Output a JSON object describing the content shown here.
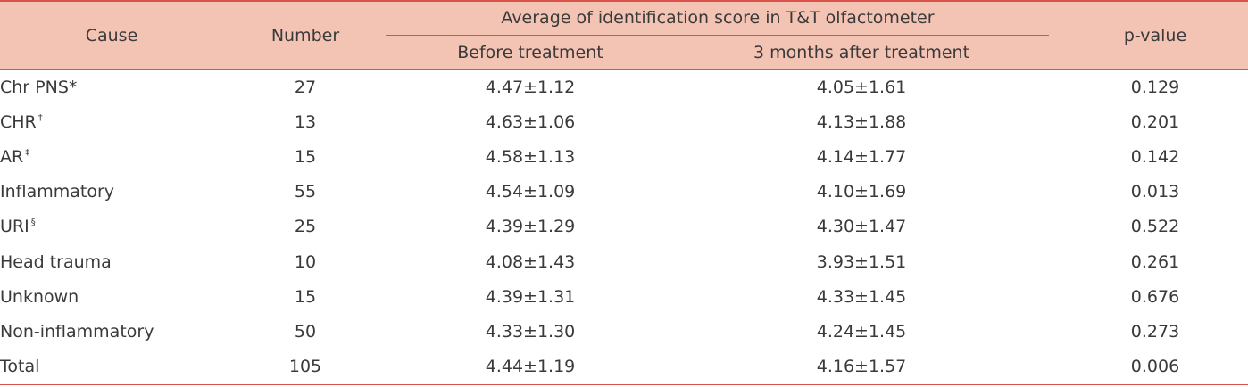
{
  "header": {
    "cause": "Cause",
    "number": "Number",
    "group": "Average of identification score in T&T olfactometer",
    "before": "Before treatment",
    "after": "3 months after treatment",
    "pvalue": "p-value"
  },
  "table": {
    "rows": [
      {
        "cause": "Chr PNS*",
        "note": null,
        "number": "27",
        "before": "4.47±1.12",
        "after": "4.05±1.61",
        "p": "0.129"
      },
      {
        "cause": "CHR",
        "note": "†",
        "number": "13",
        "before": "4.63±1.06",
        "after": "4.13±1.88",
        "p": "0.201"
      },
      {
        "cause": "AR",
        "note": "‡",
        "number": "15",
        "before": "4.58±1.13",
        "after": "4.14±1.77",
        "p": "0.142"
      },
      {
        "cause": "Inflammatory",
        "note": null,
        "number": "55",
        "before": "4.54±1.09",
        "after": "4.10±1.69",
        "p": "0.013"
      },
      {
        "cause": "URI",
        "note": "§",
        "number": "25",
        "before": "4.39±1.29",
        "after": "4.30±1.47",
        "p": "0.522"
      },
      {
        "cause": "Head trauma",
        "note": null,
        "number": "10",
        "before": "4.08±1.43",
        "after": "3.93±1.51",
        "p": "0.261"
      },
      {
        "cause": "Unknown",
        "note": null,
        "number": "15",
        "before": "4.39±1.31",
        "after": "4.33±1.45",
        "p": "0.676"
      },
      {
        "cause": "Non-inflammatory",
        "note": null,
        "number": "50",
        "before": "4.33±1.30",
        "after": "4.24±1.45",
        "p": "0.273"
      },
      {
        "cause": "Total",
        "note": null,
        "number": "105",
        "before": "4.44±1.19",
        "after": "4.16±1.57",
        "p": "0.006"
      }
    ]
  }
}
